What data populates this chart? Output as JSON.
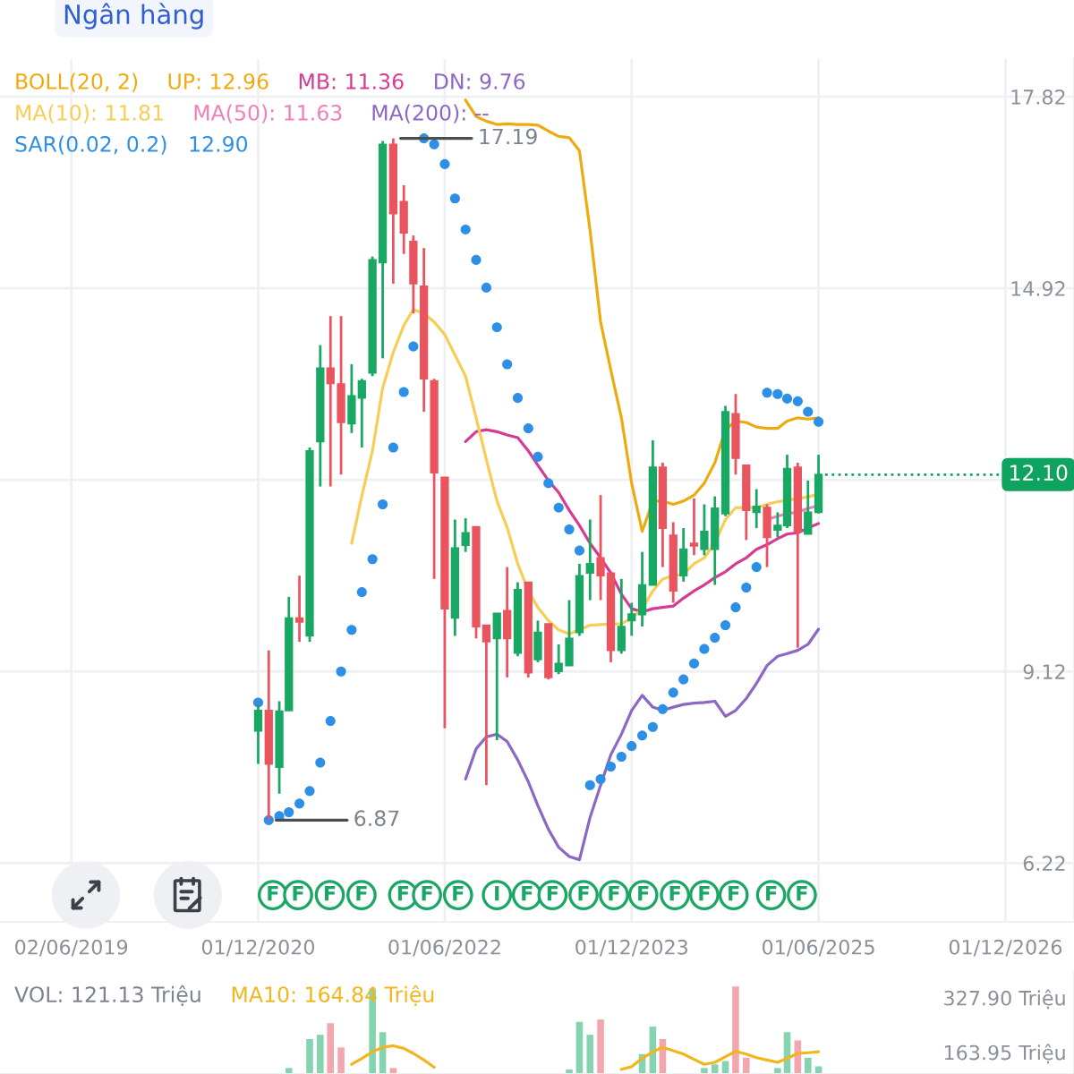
{
  "chart_data": [
    {
      "type": "candlestick",
      "annotations": [
        "Ngân hàng",
        {
          "text": "17.19",
          "x": "2022-01",
          "y": 17.19
        },
        {
          "text": "6.87",
          "x": "2021-01",
          "y": 6.87
        },
        {
          "text": "F",
          "x": "2021-01-13"
        },
        {
          "text": "F",
          "x": "2021-03-28"
        },
        {
          "text": "F",
          "x": "2021-06-29"
        },
        {
          "text": "F",
          "x": "2021-09-30"
        },
        {
          "text": "F",
          "x": "2022-01-30"
        },
        {
          "text": "F",
          "x": "2022-04-10"
        },
        {
          "text": "F",
          "x": "2022-07-10"
        },
        {
          "text": "I",
          "x": "2022-11-01"
        },
        {
          "text": "F",
          "x": "2023-01-28"
        },
        {
          "text": "F",
          "x": "2023-04-13"
        },
        {
          "text": "F",
          "x": "2023-07-13"
        },
        {
          "text": "F",
          "x": "2023-10-10"
        },
        {
          "text": "F",
          "x": "2024-01-04"
        },
        {
          "text": "F",
          "x": "2024-04-06"
        },
        {
          "text": "F",
          "x": "2024-07-01"
        },
        {
          "text": "F",
          "x": "2024-09-25"
        },
        {
          "text": "F",
          "x": "2025-01-13"
        },
        {
          "text": "F",
          "x": "2025-04-13"
        }
      ],
      "x": [
        "2020-12",
        "2021-01",
        "2021-02",
        "2021-03",
        "2021-04",
        "2021-05",
        "2021-06",
        "2021-07",
        "2021-08",
        "2021-09",
        "2021-10",
        "2021-11",
        "2021-12",
        "2022-01",
        "2022-02",
        "2022-03",
        "2022-04",
        "2022-05",
        "2022-06",
        "2022-07",
        "2022-08",
        "2022-09",
        "2022-10",
        "2022-11",
        "2022-12",
        "2023-01",
        "2023-02",
        "2023-03",
        "2023-04",
        "2023-05",
        "2023-06",
        "2023-07",
        "2023-08",
        "2023-09",
        "2023-10",
        "2023-11",
        "2023-12",
        "2024-01",
        "2024-02",
        "2024-03",
        "2024-04",
        "2024-05",
        "2024-06",
        "2024-07",
        "2024-08",
        "2024-09",
        "2024-10",
        "2024-11",
        "2024-12",
        "2025-01",
        "2025-02",
        "2025-03",
        "2025-04",
        "2025-05",
        "2025-06"
      ],
      "ohlc": [
        [
          8.22,
          8.62,
          7.72,
          8.53
        ],
        [
          8.53,
          9.44,
          6.87,
          7.72
        ],
        [
          7.67,
          8.67,
          7.27,
          8.52
        ],
        [
          8.53,
          10.25,
          8.53,
          9.93
        ],
        [
          9.93,
          10.57,
          9.57,
          9.87
        ],
        [
          9.66,
          12.51,
          9.57,
          12.46
        ],
        [
          12.6,
          14.06,
          11.92,
          13.71
        ],
        [
          13.71,
          14.5,
          11.92,
          13.48
        ],
        [
          13.47,
          14.5,
          12.1,
          12.89
        ],
        [
          12.87,
          13.77,
          12.73,
          13.29
        ],
        [
          13.26,
          13.55,
          12.51,
          13.52
        ],
        [
          13.64,
          15.4,
          13.59,
          15.35
        ],
        [
          15.31,
          17.15,
          13.86,
          17.1
        ],
        [
          17.1,
          17.19,
          14.99,
          16.05
        ],
        [
          16.23,
          16.48,
          15.44,
          15.76
        ],
        [
          15.63,
          15.72,
          14.54,
          14.99
        ],
        [
          14.95,
          15.53,
          13.05,
          13.55
        ],
        [
          13.52,
          13.55,
          10.52,
          12.13
        ],
        [
          12.06,
          12.06,
          8.26,
          10.07
        ],
        [
          9.93,
          11.42,
          9.66,
          10.99
        ],
        [
          11.03,
          11.44,
          10.93,
          11.22
        ],
        [
          11.31,
          11.31,
          9.62,
          9.8
        ],
        [
          9.82,
          9.82,
          7.4,
          9.57
        ],
        [
          9.62,
          10.0,
          8.08,
          10.0
        ],
        [
          10.04,
          10.7,
          9.03,
          9.62
        ],
        [
          9.4,
          10.47,
          9.35,
          10.36
        ],
        [
          10.47,
          10.47,
          9.03,
          9.1
        ],
        [
          9.3,
          9.89,
          9.26,
          9.71
        ],
        [
          9.84,
          9.84,
          9.0,
          9.03
        ],
        [
          9.12,
          9.53,
          9.08,
          9.24
        ],
        [
          9.21,
          10.2,
          9.21,
          9.62
        ],
        [
          9.71,
          10.75,
          9.66,
          10.57
        ],
        [
          10.61,
          11.42,
          10.2,
          10.75
        ],
        [
          10.84,
          11.79,
          10.2,
          10.57
        ],
        [
          10.61,
          10.61,
          9.26,
          9.44
        ],
        [
          9.44,
          10.52,
          9.39,
          9.8
        ],
        [
          9.89,
          10.16,
          9.66,
          9.99
        ],
        [
          9.98,
          10.93,
          9.8,
          10.43
        ],
        [
          10.43,
          12.62,
          10.43,
          12.21
        ],
        [
          12.21,
          12.28,
          10.7,
          11.29
        ],
        [
          11.18,
          11.38,
          10.16,
          10.34
        ],
        [
          10.57,
          11.29,
          10.48,
          10.97
        ],
        [
          11.06,
          11.74,
          10.88,
          11.02
        ],
        [
          10.97,
          11.65,
          10.88,
          11.24
        ],
        [
          10.97,
          11.77,
          10.43,
          11.59
        ],
        [
          11.51,
          13.14,
          11.47,
          13.05
        ],
        [
          13.02,
          13.32,
          12.1,
          12.35
        ],
        [
          12.24,
          12.24,
          11.11,
          11.56
        ],
        [
          11.53,
          11.88,
          11.29,
          11.62
        ],
        [
          11.6,
          11.65,
          10.7,
          11.15
        ],
        [
          11.26,
          11.53,
          11.15,
          11.33
        ],
        [
          11.33,
          12.4,
          11.29,
          12.19
        ],
        [
          12.21,
          12.28,
          9.48,
          11.24
        ],
        [
          11.2,
          12.01,
          11.2,
          11.53
        ],
        [
          11.53,
          12.4,
          11.51,
          12.1
        ]
      ],
      "colors": [
        "#19a863",
        "#e9545f",
        "#19a863",
        "#19a863",
        "#e9545f",
        "#19a863",
        "#19a863",
        "#e9545f",
        "#e9545f",
        "#19a863",
        "#19a863",
        "#19a863",
        "#19a863",
        "#e9545f",
        "#e9545f",
        "#e9545f",
        "#e9545f",
        "#e9545f",
        "#e9545f",
        "#19a863",
        "#19a863",
        "#e9545f",
        "#e9545f",
        "#19a863",
        "#e9545f",
        "#19a863",
        "#e9545f",
        "#19a863",
        "#e9545f",
        "#19a863",
        "#19a863",
        "#19a863",
        "#19a863",
        "#e9545f",
        "#e9545f",
        "#19a863",
        "#19a863",
        "#19a863",
        "#19a863",
        "#e9545f",
        "#e9545f",
        "#19a863",
        "#e9545f",
        "#19a863",
        "#19a863",
        "#19a863",
        "#e9545f",
        "#e9545f",
        "#19a863",
        "#e9545f",
        "#19a863",
        "#19a863",
        "#e9545f",
        "#19a863",
        "#19a863"
      ],
      "legend_title": "BOLL(20, 2)",
      "series": [
        {
          "name": "UP: 12.96",
          "type": "line",
          "color": "#eeab10",
          "values": [
            null,
            null,
            null,
            null,
            null,
            null,
            null,
            null,
            null,
            null,
            null,
            null,
            null,
            null,
            null,
            null,
            null,
            null,
            null,
            null,
            17.77,
            17.52,
            17.45,
            17.4,
            17.41,
            17.4,
            17.4,
            17.39,
            17.3,
            17.22,
            17.2,
            17.0,
            15.8,
            14.41,
            13.68,
            12.96,
            11.97,
            11.24,
            11.7,
            11.7,
            11.65,
            11.7,
            11.79,
            11.97,
            12.28,
            12.78,
            12.91,
            12.89,
            12.82,
            12.8,
            12.8,
            12.91,
            12.96,
            12.94,
            12.96
          ]
        },
        {
          "name": "MB: 11.36",
          "type": "line",
          "color": "#d63a93",
          "values": [
            null,
            null,
            null,
            null,
            null,
            null,
            null,
            null,
            null,
            null,
            null,
            null,
            null,
            null,
            null,
            null,
            null,
            null,
            null,
            null,
            12.6,
            12.75,
            12.78,
            12.75,
            12.7,
            12.66,
            12.46,
            12.24,
            12.01,
            11.83,
            11.56,
            11.33,
            11.06,
            10.84,
            10.61,
            10.29,
            10.07,
            10.02,
            10.07,
            10.09,
            10.11,
            10.23,
            10.34,
            10.43,
            10.54,
            10.63,
            10.75,
            10.84,
            10.97,
            11.04,
            11.13,
            11.2,
            11.22,
            11.29,
            11.36
          ]
        },
        {
          "name": "DN: 9.76",
          "type": "line",
          "color": "#8c67c4",
          "values": [
            null,
            null,
            null,
            null,
            null,
            null,
            null,
            null,
            null,
            null,
            null,
            null,
            null,
            null,
            null,
            null,
            null,
            null,
            null,
            null,
            7.49,
            7.95,
            8.13,
            8.17,
            8.06,
            7.78,
            7.45,
            7.09,
            6.73,
            6.46,
            6.32,
            6.27,
            6.91,
            7.4,
            7.86,
            8.17,
            8.53,
            8.76,
            8.58,
            8.53,
            8.58,
            8.62,
            8.64,
            8.65,
            8.67,
            8.44,
            8.53,
            8.71,
            8.94,
            9.21,
            9.35,
            9.39,
            9.44,
            9.53,
            9.76
          ]
        },
        {
          "name": "MA(10): 11.81",
          "type": "line",
          "color": "#f7cd55",
          "values": [
            null,
            null,
            null,
            null,
            null,
            null,
            null,
            null,
            null,
            11.06,
            11.78,
            12.46,
            13.41,
            13.95,
            14.36,
            14.6,
            14.54,
            14.41,
            14.22,
            13.91,
            13.59,
            12.96,
            12.33,
            11.7,
            11.3,
            10.75,
            10.34,
            10.09,
            9.89,
            9.75,
            9.69,
            9.75,
            9.82,
            9.83,
            9.84,
            9.84,
            9.93,
            10.07,
            10.34,
            10.52,
            10.57,
            10.59,
            10.75,
            10.84,
            11.06,
            11.42,
            11.6,
            11.6,
            11.6,
            11.65,
            11.69,
            11.71,
            11.74,
            11.76,
            11.81
          ]
        },
        {
          "name": "MA(50): 11.63",
          "type": "line",
          "color": "#f07fbb",
          "values": [
            null,
            null,
            null,
            null,
            null,
            null,
            null,
            null,
            null,
            null,
            null,
            null,
            null,
            null,
            null,
            null,
            null,
            null,
            null,
            null,
            null,
            null,
            null,
            null,
            null,
            null,
            null,
            null,
            null,
            null,
            null,
            null,
            null,
            null,
            null,
            null,
            null,
            null,
            null,
            null,
            null,
            null,
            null,
            null,
            null,
            null,
            null,
            null,
            null,
            11.42,
            11.47,
            11.51,
            11.53,
            11.59,
            11.63
          ]
        },
        {
          "name": "MA(200): --",
          "type": "line",
          "color": "#8c67c4",
          "values": [
            null,
            null,
            null,
            null,
            null,
            null,
            null,
            null,
            null,
            null,
            null,
            null,
            null,
            null,
            null,
            null,
            null,
            null,
            null,
            null,
            null,
            null,
            null,
            null,
            null,
            null,
            null,
            null,
            null,
            null,
            null,
            null,
            null,
            null,
            null,
            null,
            null,
            null,
            null,
            null,
            null,
            null,
            null,
            null,
            null,
            null,
            null,
            null,
            null,
            null,
            null,
            null,
            null,
            null,
            null
          ]
        },
        {
          "name": "SAR(0.02, 0.2)   12.90",
          "type": "scatter",
          "color": "#2d8fe6",
          "marker": "circle",
          "values": [
            8.65,
            6.87,
            6.93,
            6.99,
            7.12,
            7.31,
            7.74,
            8.37,
            9.12,
            9.75,
            10.32,
            10.82,
            11.65,
            12.51,
            13.35,
            14.04,
            17.19,
            17.1,
            16.8,
            16.28,
            15.81,
            15.35,
            14.93,
            14.33,
            13.77,
            13.26,
            12.8,
            12.37,
            11.97,
            11.6,
            11.27,
            10.95,
            7.4,
            7.49,
            7.68,
            7.83,
            7.99,
            8.15,
            8.28,
            8.55,
            8.8,
            9.0,
            9.24,
            9.46,
            9.63,
            9.82,
            10.09,
            10.39,
            10.7,
            13.34,
            13.32,
            13.25,
            13.21,
            13.05,
            12.9
          ]
        }
      ],
      "xlim": [
        "2018-11-05",
        "2027-06-20"
      ],
      "xticks": [
        {
          "value": "2019-06-02",
          "label": "02/06/2019"
        },
        {
          "value": "2020-12-01",
          "label": "01/12/2020"
        },
        {
          "value": "2022-06-01",
          "label": "01/06/2022"
        },
        {
          "value": "2023-12-01",
          "label": "01/12/2023"
        },
        {
          "value": "2025-06-01",
          "label": "01/06/2025"
        },
        {
          "value": "2026-12-01",
          "label": "01/12/2026"
        }
      ],
      "ylim": [
        5.33,
        18.39
      ],
      "yticks": [
        6.22,
        9.12,
        {
          "value": 12.02,
          "label": null
        },
        14.92,
        17.82
      ],
      "ref_lines": [
        {
          "axis": "y",
          "value": 12.1,
          "label": "12.10",
          "color": "#0ea35e",
          "line_style": "dotted"
        }
      ],
      "grid": true,
      "legend": "top left"
    },
    {
      "type": "bar",
      "legend_title": "VOL: 121.13 Triệu",
      "series": [
        {
          "type": "bar",
          "x": [
            "2021-03",
            "2021-05",
            "2021-06",
            "2021-07",
            "2021-08",
            "2021-11",
            "2021-12",
            "2022-01",
            "2023-06",
            "2023-07",
            "2023-08",
            "2023-09",
            "2024-01",
            "2024-02",
            "2024-03",
            "2024-07",
            "2024-08",
            "2024-09",
            "2024-10",
            "2024-11",
            "2025-02",
            "2025-03",
            "2025-04",
            "2025-05",
            "2025-06"
          ],
          "values": [
            116,
            203,
            216,
            251,
            178,
            355,
            224,
            116,
            112,
            255,
            216,
            262,
            158,
            241,
            203,
            116,
            127,
            137,
            361,
            147,
            116,
            224,
            199,
            147,
            121.13
          ],
          "colors": [
            "#86d3b0",
            "#86d3b0",
            "#86d3b0",
            "#f3a6ae",
            "#f3a6ae",
            "#86d3b0",
            "#86d3b0",
            "#f3a6ae",
            "#86d3b0",
            "#86d3b0",
            "#86d3b0",
            "#f3a6ae",
            "#86d3b0",
            "#86d3b0",
            "#f3a6ae",
            "#86d3b0",
            "#86d3b0",
            "#86d3b0",
            "#f3a6ae",
            "#f3a6ae",
            "#86d3b0",
            "#86d3b0",
            "#f3a6ae",
            "#86d3b0",
            "#86d3b0"
          ]
        },
        {
          "name": "MA10: 164.84 Triệu",
          "type": "line",
          "color": "#f1b61e",
          "x": [
            "2021-09",
            "2021-10",
            "2021-11",
            "2021-12",
            "2022-01",
            "2022-02",
            "2022-03",
            "2022-04",
            "2022-05",
            "2022-06",
            "2022-07",
            "2022-08",
            "2022-09",
            "2022-10",
            "2022-11",
            "2022-12",
            "2023-01",
            "2023-02",
            "2023-03",
            "2023-04",
            "2023-05",
            "2023-06",
            "2023-07",
            "2023-08",
            "2023-09",
            "2023-10",
            "2023-11",
            "2023-12",
            "2024-01",
            "2024-02",
            "2024-03",
            "2024-04",
            "2024-05",
            "2024-06",
            "2024-07",
            "2024-08",
            "2024-09",
            "2024-10",
            "2024-11",
            "2024-12",
            "2025-01",
            "2025-02",
            "2025-03",
            "2025-04",
            "2025-05",
            "2025-06"
          ],
          "values": [
            127,
            145,
            165,
            178,
            183,
            175,
            160,
            140,
            118,
            null,
            null,
            null,
            null,
            null,
            null,
            null,
            null,
            null,
            null,
            null,
            null,
            null,
            null,
            null,
            null,
            null,
            112,
            120,
            145,
            165,
            178,
            168,
            158,
            142,
            127,
            133,
            150,
            166,
            158,
            147,
            140,
            133,
            145,
            160,
            162,
            164.84
          ]
        }
      ],
      "xlim": [
        "2018-11-05",
        "2027-06-20"
      ],
      "ylim": [
        98,
        405
      ],
      "yticks": [
        {
          "value": 163.95,
          "label": "163.95 Triệu"
        },
        {
          "value": 327.9,
          "label": "327.90 Triệu"
        }
      ],
      "tick_labels": "y",
      "legend": "top left"
    }
  ]
}
